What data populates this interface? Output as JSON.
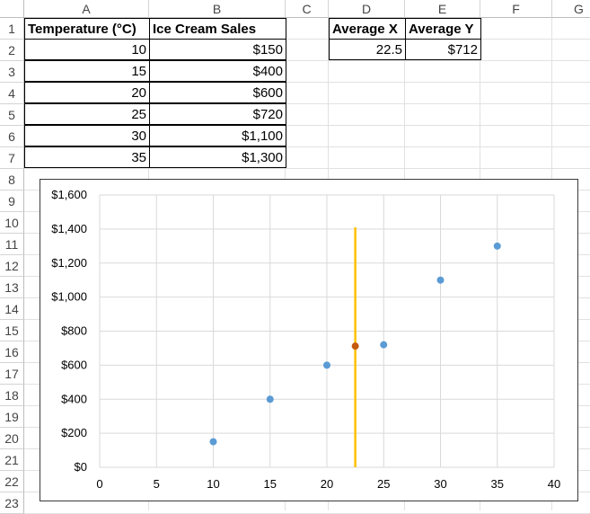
{
  "columns": [
    "A",
    "B",
    "C",
    "D",
    "E",
    "F",
    "G"
  ],
  "rows": [
    "1",
    "2",
    "3",
    "4",
    "5",
    "6",
    "7",
    "8",
    "9",
    "10",
    "11",
    "12",
    "13",
    "14",
    "15",
    "16",
    "17",
    "18",
    "19",
    "20",
    "21",
    "22",
    "23"
  ],
  "table": {
    "headers": [
      "Temperature (°C)",
      "Ice Cream Sales"
    ],
    "rows": [
      [
        "10",
        "$150"
      ],
      [
        "15",
        "$400"
      ],
      [
        "20",
        "$600"
      ],
      [
        "25",
        "$720"
      ],
      [
        "30",
        "$1,100"
      ],
      [
        "35",
        "$1,300"
      ]
    ]
  },
  "averages": {
    "headers": [
      "Average X",
      "Average Y"
    ],
    "values": [
      "22.5",
      "$712"
    ]
  },
  "chart_data": {
    "type": "scatter",
    "x": [
      10,
      15,
      20,
      25,
      30,
      35
    ],
    "y": [
      150,
      400,
      600,
      720,
      1100,
      1300
    ],
    "xlim": [
      0,
      40
    ],
    "ylim": [
      0,
      1600
    ],
    "xticks": [
      "0",
      "5",
      "10",
      "15",
      "20",
      "25",
      "30",
      "35",
      "40"
    ],
    "yticks": [
      "$0",
      "$200",
      "$400",
      "$600",
      "$800",
      "$1,000",
      "$1,200",
      "$1,400",
      "$1,600"
    ],
    "average_point": {
      "x": 22.5,
      "y": 712
    },
    "vertical_line": {
      "x": 22.5,
      "y_from": 0,
      "y_to": 1410
    },
    "grid": true,
    "colors": {
      "points": "#5b9bd5",
      "average": "#c55a11",
      "line": "#ffc000"
    }
  }
}
